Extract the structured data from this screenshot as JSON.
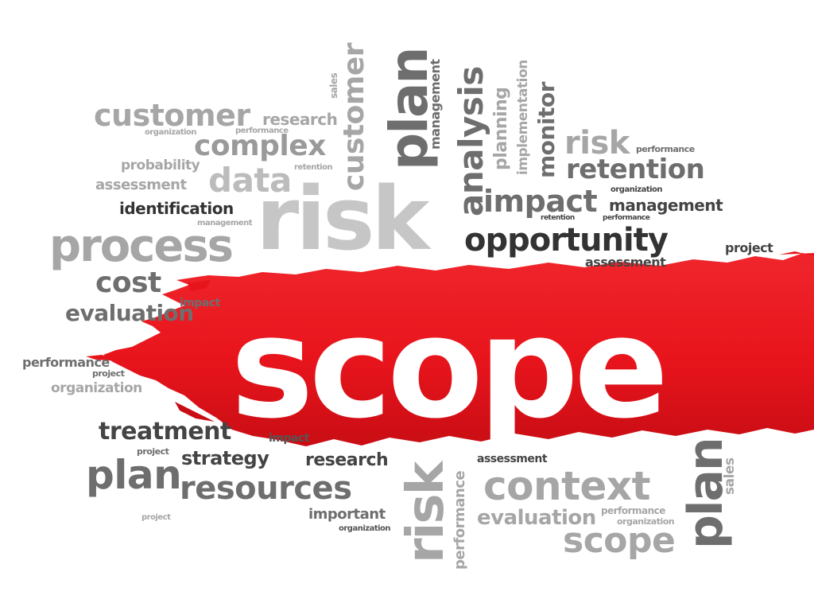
{
  "colors": {
    "brush": "#e8141c",
    "brush_dark": "#c90d14",
    "headline_text": "#ffffff"
  },
  "headline": "scope",
  "words": {
    "customer_1": "customer",
    "organization_1": "organization",
    "performance_1": "performance",
    "research_1": "research",
    "sales_1": "sales",
    "customer_v": "customer",
    "plan_v": "plan",
    "management_v": "management",
    "analysis_v": "analysis",
    "planning_v": "planning",
    "implementation_v": "implementation",
    "monitor_v": "monitor",
    "complex": "complex",
    "data": "data",
    "risk_big": "risk",
    "probability": "probability",
    "retention_1": "retention",
    "assessment_1": "assessment",
    "identification": "identification",
    "management_1": "management",
    "process": "process",
    "risk_2": "risk",
    "performance_2": "performance",
    "retention_2": "retention",
    "organization_2": "organization",
    "impact_1": "impact",
    "management_2": "management",
    "retention_3": "retention",
    "performance_3": "performance",
    "opportunity": "opportunity",
    "project_1": "project",
    "assessment_2": "assessment",
    "cost": "cost",
    "impact_2": "impact",
    "evaluation_1": "evaluation",
    "performance_4": "performance",
    "project_2": "project",
    "organization_3": "organization",
    "treatment": "treatment",
    "impact_3": "impact",
    "project_3": "project",
    "plan_1": "plan",
    "strategy": "strategy",
    "research_2": "research",
    "resources": "resources",
    "project_4": "project",
    "important": "important",
    "organization_4": "organization",
    "risk_v2": "risk",
    "performance_v": "performance",
    "assessment_3": "assessment",
    "context": "context",
    "evaluation_2": "evaluation",
    "performance_5": "performance",
    "organization_5": "organization",
    "scope_2": "scope",
    "plan_v2": "plan",
    "sales_v2": "sales"
  }
}
